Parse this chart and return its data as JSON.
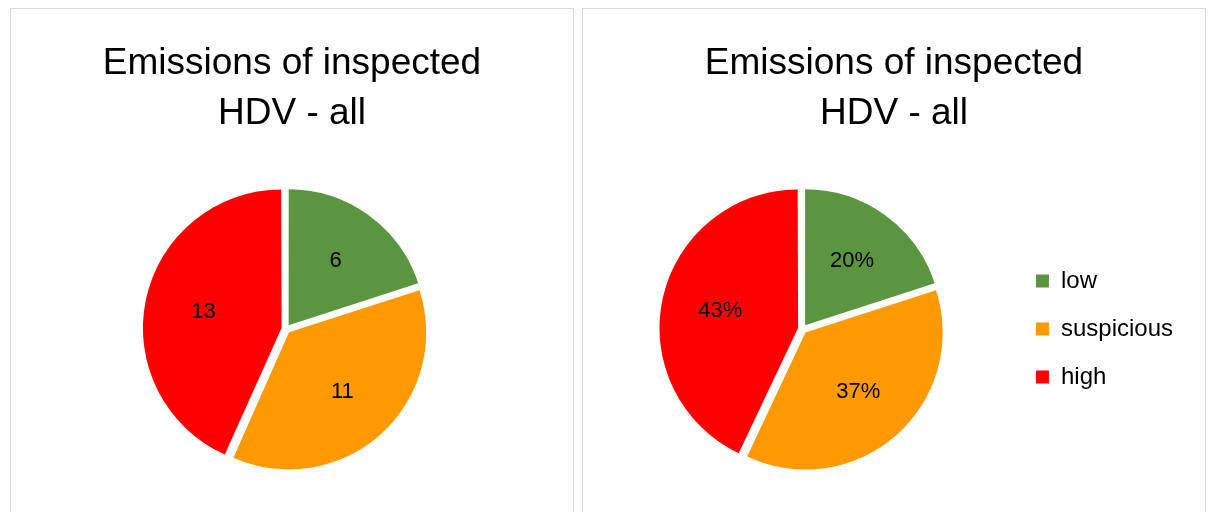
{
  "chart_data": [
    {
      "type": "pie",
      "title": "Emissions of inspected HDV - all",
      "categories": [
        null,
        null,
        null
      ],
      "values": [
        6,
        11,
        13
      ],
      "colors": [
        "#5b9540",
        "#ff9900",
        "#ff0000"
      ],
      "data_labels": true,
      "legend": false
    },
    {
      "type": "pie",
      "title": "Emissions of inspected HDV - all",
      "categories": [
        "low",
        "suspicious",
        "high"
      ],
      "values": [
        20,
        37,
        43
      ],
      "colors": [
        "#5b9540",
        "#ff9900",
        "#ff0000"
      ],
      "value_labels": [
        "20%",
        "37%",
        "43%"
      ],
      "legend": "right"
    }
  ]
}
